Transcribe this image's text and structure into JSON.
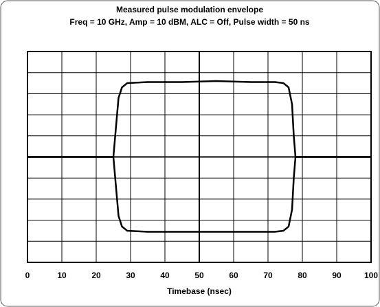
{
  "chart_data": {
    "type": "line",
    "title": "Measured pulse modulation envelope",
    "subtitle": "Freq = 10 GHz, Amp = 10 dBM, ALC = Off, Pulse width = 50 ns",
    "xlabel": "Timebase (nsec)",
    "x": [
      0,
      25,
      25.8,
      26.5,
      27.5,
      29,
      35,
      45,
      55,
      65,
      72,
      74.5,
      76,
      77,
      77.5,
      78,
      100
    ],
    "series": [
      {
        "color": "#000000",
        "values": [
          0,
          0,
          1.5,
          2.8,
          3.3,
          3.5,
          3.55,
          3.55,
          3.6,
          3.55,
          3.55,
          3.5,
          3.3,
          2.5,
          1,
          0,
          0
        ]
      },
      {
        "color": "#000000",
        "values": [
          0,
          0,
          -1.5,
          -2.8,
          -3.3,
          -3.5,
          -3.55,
          -3.55,
          -3.55,
          -3.55,
          -3.55,
          -3.5,
          -3.3,
          -2.5,
          -1,
          0,
          0
        ]
      }
    ],
    "xlim": [
      0,
      100
    ],
    "xticks": [
      0,
      10,
      20,
      30,
      40,
      50,
      60,
      70,
      80,
      90,
      100
    ],
    "ylim": [
      -5,
      5
    ],
    "yticks": [
      -5,
      -4,
      -3,
      -2,
      -1,
      0,
      1,
      2,
      3,
      4,
      5
    ],
    "grid": true
  }
}
